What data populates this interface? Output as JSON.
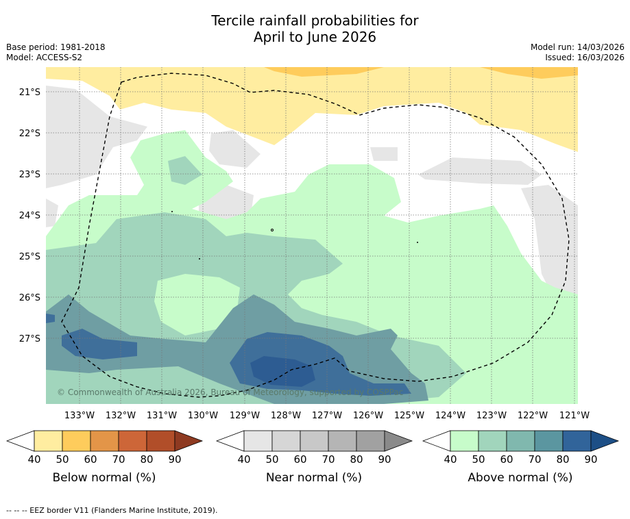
{
  "title_line1": "Tercile rainfall probabilities for",
  "title_line2": "April to June 2026",
  "base_period": "Base period: 1981-2018",
  "model": "Model: ACCESS-S2",
  "model_run": "Model run: 14/03/2026",
  "issued": "Issued: 16/03/2026",
  "copyright": "© Commonwealth of Australia 2026, Bureau of Meteorology, supported by COSPPac",
  "lat_labels": [
    "21°S",
    "22°S",
    "23°S",
    "24°S",
    "25°S",
    "26°S",
    "27°S"
  ],
  "lon_labels": [
    "133°W",
    "132°W",
    "131°W",
    "130°W",
    "129°W",
    "128°W",
    "127°W",
    "126°W",
    "125°W",
    "124°W",
    "123°W",
    "122°W",
    "121°W"
  ],
  "colorbars": [
    {
      "name": "below",
      "title": "Below normal (%)",
      "ticks": [
        "40",
        "50",
        "60",
        "70",
        "80",
        "90"
      ],
      "colors": [
        "#ffffff",
        "#ffeda0",
        "#fecc5c",
        "#e39548",
        "#cd6638",
        "#b14e29",
        "#8e3a21"
      ]
    },
    {
      "name": "near",
      "title": "Near normal (%)",
      "ticks": [
        "40",
        "50",
        "60",
        "70",
        "80",
        "90"
      ],
      "colors": [
        "#ffffff",
        "#e6e6e6",
        "#d6d6d6",
        "#c8c8c8",
        "#b5b5b5",
        "#a1a1a1",
        "#8a8a8a"
      ]
    },
    {
      "name": "above",
      "title": "Above normal (%)",
      "ticks": [
        "40",
        "50",
        "60",
        "70",
        "80",
        "90"
      ],
      "colors": [
        "#ffffff",
        "#c7fcca",
        "#a1d5bc",
        "#80b8ae",
        "#5b96a0",
        "#31649a",
        "#1d4f86"
      ]
    }
  ],
  "footnote": "--  --  -- EEZ border V11 (Flanders Marine Institute, 2019)."
}
